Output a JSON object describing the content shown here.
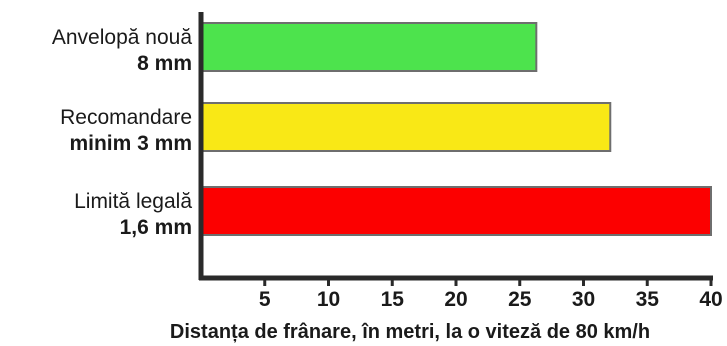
{
  "chart_data": {
    "type": "bar",
    "orientation": "horizontal",
    "categories": [
      {
        "name": "Anvelopă nouă",
        "detail": "8 mm"
      },
      {
        "name": "Recomandare",
        "detail": "minim 3 mm"
      },
      {
        "name": "Limită legală",
        "detail": "1,6 mm"
      }
    ],
    "values": [
      26.3,
      32.1,
      40
    ],
    "colors": [
      "#4de34d",
      "#f9e816",
      "#fc0000"
    ],
    "bar_outline_color": "#6e6e6e",
    "axis_color": "#2a2a2a",
    "xlabel": "Distanța de frânare, în metri, la o viteză de 80 km/h",
    "xlim": [
      0,
      40
    ],
    "xticks": [
      5,
      10,
      15,
      20,
      25,
      30,
      35,
      40
    ],
    "grid": false,
    "legend": "none"
  }
}
